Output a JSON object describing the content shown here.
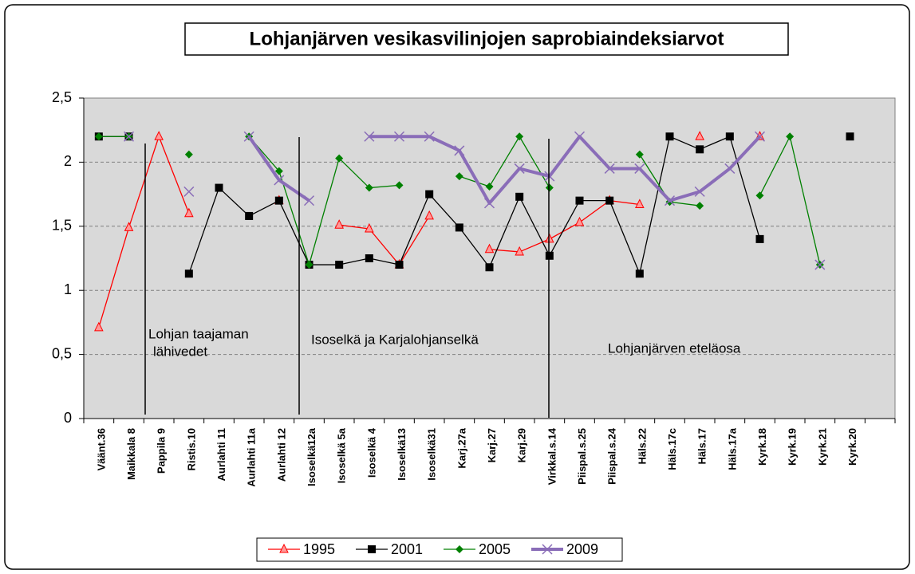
{
  "chart_data": {
    "type": "line",
    "title": "Lohjanjärven vesikasvilinjojen saprobiaindeksiarvot",
    "annotations": [
      "Lohjan taajaman",
      "lähivedet",
      "Isoselkä ja Karjalohjanselkä",
      "Lohjanjärven eteläosa"
    ],
    "categories": [
      "Väänt.36",
      "Maikkala 8",
      "Pappila 9",
      "Ristis.10",
      "Aurlahti 11",
      "Aurlahti 11a",
      "Aurlahti 12",
      "Isoselkä12a",
      "Isoselkä 5a",
      "Isoselkä 4",
      "Isoselkä13",
      "Isoselkä31",
      "Karj.27a",
      "Karj.27",
      "Karj.29",
      "Virkkal.s.14",
      "Piispal.s.25",
      "Piispal.s.24",
      "Häls.22",
      "Häls.17c",
      "Häls.17",
      "Häls.17a",
      "Kyrk.18",
      "Kyrk.19",
      "Kyrk.21",
      "Kyrk.20",
      null
    ],
    "series": [
      {
        "name": "1995",
        "color": "#ff0000",
        "marker": "triangle",
        "values": [
          0.71,
          1.49,
          2.2,
          1.6,
          null,
          null,
          1.7,
          null,
          1.51,
          1.48,
          1.2,
          1.58,
          null,
          1.32,
          1.3,
          1.4,
          1.53,
          1.7,
          1.67,
          null,
          2.2,
          null,
          2.2,
          null,
          null,
          null,
          null
        ]
      },
      {
        "name": "2001",
        "color": "#000000",
        "marker": "square",
        "values": [
          2.2,
          2.2,
          null,
          1.13,
          1.8,
          1.58,
          1.7,
          1.2,
          1.2,
          1.25,
          1.2,
          1.75,
          1.49,
          1.18,
          1.73,
          1.27,
          1.7,
          1.7,
          1.13,
          2.2,
          2.1,
          2.2,
          1.4,
          null,
          null,
          2.2,
          null
        ]
      },
      {
        "name": "2005",
        "color": "#008000",
        "marker": "diamond",
        "values": [
          2.2,
          2.2,
          null,
          2.06,
          null,
          2.2,
          1.93,
          1.2,
          2.03,
          1.8,
          1.82,
          null,
          1.89,
          1.81,
          2.2,
          1.8,
          null,
          null,
          2.06,
          1.69,
          1.66,
          null,
          1.74,
          2.2,
          1.2,
          null,
          null
        ]
      },
      {
        "name": "2009",
        "color": "#8a6db8",
        "marker": "x",
        "values": [
          null,
          2.2,
          null,
          1.77,
          null,
          2.2,
          1.86,
          1.7,
          null,
          2.2,
          2.2,
          2.2,
          2.09,
          1.68,
          1.95,
          1.89,
          2.2,
          1.95,
          1.95,
          1.7,
          1.77,
          1.95,
          2.2,
          null,
          1.2,
          null,
          null
        ]
      }
    ],
    "ylim": [
      0,
      2.5
    ],
    "yticks": [
      0,
      {
        "value": 0.5,
        "label": "0,5"
      },
      1,
      {
        "value": 1.5,
        "label": "1,5"
      },
      2,
      {
        "value": 2.5,
        "label": "2,5"
      }
    ],
    "grid": true,
    "legend": "bottom"
  }
}
